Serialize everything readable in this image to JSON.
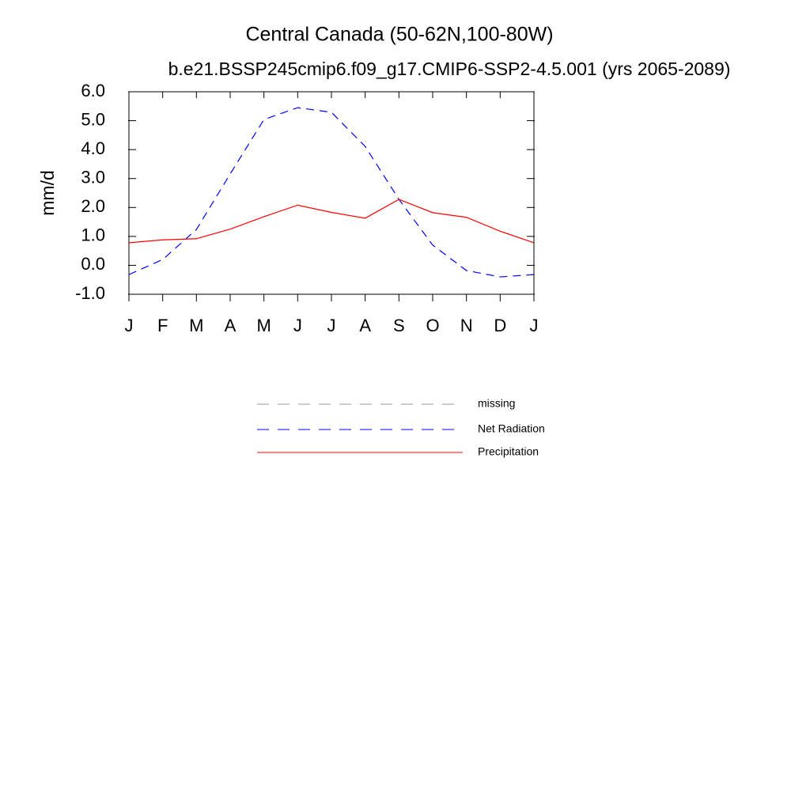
{
  "chart_data": {
    "type": "line",
    "title": "Central Canada (50-62N,100-80W)",
    "subtitle": "b.e21.BSSP245cmip6.f09_g17.CMIP6-SSP2-4.5.001 (yrs 2065-2089)",
    "y_label": "mm/d",
    "categories": [
      "J",
      "F",
      "M",
      "A",
      "M",
      "J",
      "J",
      "A",
      "S",
      "O",
      "N",
      "D",
      "J"
    ],
    "ylim": [
      -1,
      6
    ],
    "yticks": [
      {
        "value": -1,
        "label": "-1.0"
      },
      {
        "value": 0,
        "label": "0.0"
      },
      {
        "value": 1,
        "label": "1.0"
      },
      {
        "value": 2,
        "label": "2.0"
      },
      {
        "value": 3,
        "label": "3.0"
      },
      {
        "value": 4,
        "label": "4.0"
      },
      {
        "value": 5,
        "label": "5.0"
      },
      {
        "value": 6,
        "label": "6.0"
      }
    ],
    "series": [
      {
        "name": "missing",
        "color": "#999999",
        "dashed": true,
        "values": [
          null,
          null,
          null,
          null,
          null,
          null,
          null,
          null,
          null,
          null,
          null,
          null,
          null
        ]
      },
      {
        "name": "Net Radiation",
        "color": "#0000ff",
        "dashed": true,
        "values": [
          -0.32,
          0.2,
          1.24,
          3.16,
          5.04,
          5.45,
          5.29,
          4.11,
          2.28,
          0.7,
          -0.18,
          -0.4,
          -0.32
        ]
      },
      {
        "name": "Precipitation",
        "color": "#ff0000",
        "dashed": false,
        "values": [
          0.78,
          0.88,
          0.92,
          1.25,
          1.68,
          2.08,
          1.83,
          1.63,
          2.28,
          1.82,
          1.66,
          1.18,
          0.78
        ]
      }
    ]
  }
}
